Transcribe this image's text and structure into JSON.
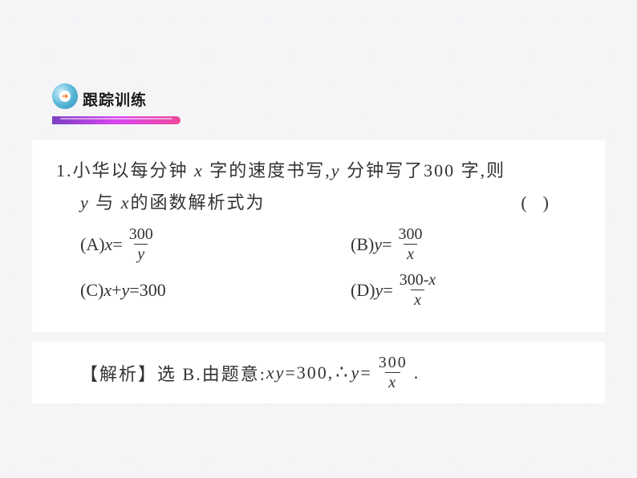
{
  "header": {
    "title": "跟踪训练",
    "arrow_glyph": "➔",
    "badge_bg": "#5ab8d8",
    "underline_gradient": [
      "#7a3fc4",
      "#d946ef",
      "#ec4899"
    ]
  },
  "question": {
    "number": "1.",
    "line1_part1": "小华以每分钟 ",
    "line1_var1": "x",
    "line1_part2": " 字的速度书写,",
    "line1_var2": "y",
    "line1_part3": " 分钟写了300 字,则",
    "line2_var1": "y",
    "line2_part1": " 与 ",
    "line2_var2": "x",
    "line2_part2": "的函数解析式为",
    "paren_open": "(",
    "paren_close": ")"
  },
  "options": {
    "A": {
      "label": "(A)",
      "lhs_var": "x",
      "eq": "=",
      "frac_num": "300",
      "frac_den": "y"
    },
    "B": {
      "label": "(B)",
      "lhs_var": "y",
      "eq": "=",
      "frac_num": "300",
      "frac_den": "x"
    },
    "C": {
      "label": "(C)",
      "lhs_var1": "x",
      "plus": "+",
      "lhs_var2": "y",
      "eq": "=",
      "rhs": "300"
    },
    "D": {
      "label": "(D)",
      "lhs_var": "y",
      "eq": "=",
      "frac_num_part1": "300-",
      "frac_num_var": "x",
      "frac_den": "x"
    }
  },
  "analysis": {
    "label": "【解析】",
    "part1": "选 B.由题意:",
    "var1": "x",
    "var2": "y",
    "eq1": "=300,",
    "therefore": "∴",
    "var3": "y",
    "eq2": "=",
    "frac_num": "300",
    "frac_den": "x",
    "period": "."
  },
  "colors": {
    "page_bg": "#f5f4f7",
    "content_bg": "#ffffff",
    "text": "#333333"
  }
}
